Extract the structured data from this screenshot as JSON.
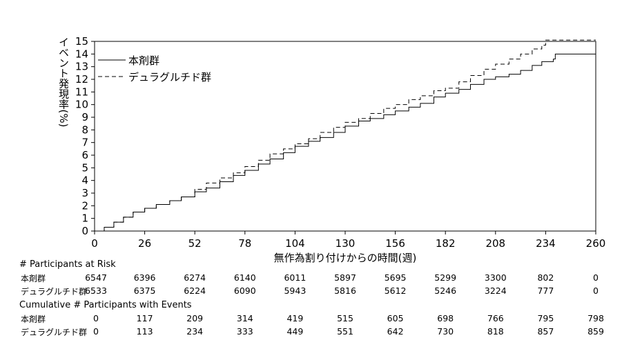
{
  "chart_data": {
    "type": "line",
    "xlabel": "無作為割り付けからの時間(週)",
    "ylabel": "イベント発現率(%)",
    "xlim": [
      0,
      260
    ],
    "ylim": [
      0,
      15
    ],
    "xticks": [
      0,
      26,
      52,
      78,
      104,
      130,
      156,
      182,
      208,
      234,
      260
    ],
    "yticks": [
      0,
      1,
      2,
      3,
      4,
      5,
      6,
      7,
      8,
      9,
      10,
      11,
      12,
      13,
      14,
      15
    ],
    "legend_position": "top-left",
    "grid": false,
    "series": [
      {
        "name": "本剤群",
        "line_style": "solid",
        "x": [
          0,
          5,
          10,
          15,
          20,
          26,
          32,
          39,
          45,
          52,
          58,
          65,
          72,
          78,
          85,
          91,
          98,
          104,
          111,
          117,
          124,
          130,
          137,
          143,
          150,
          156,
          163,
          169,
          176,
          182,
          189,
          195,
          202,
          208,
          215,
          221,
          227,
          232,
          234,
          238,
          239,
          260
        ],
        "y": [
          0,
          0.3,
          0.7,
          1.1,
          1.5,
          1.8,
          2.1,
          2.4,
          2.7,
          3.1,
          3.4,
          3.9,
          4.4,
          4.8,
          5.3,
          5.7,
          6.2,
          6.7,
          7.1,
          7.4,
          7.8,
          8.3,
          8.7,
          8.9,
          9.2,
          9.5,
          9.8,
          10.1,
          10.6,
          10.9,
          11.2,
          11.6,
          12.0,
          12.2,
          12.4,
          12.7,
          13.1,
          13.4,
          13.4,
          13.6,
          14.0,
          14.0
        ]
      },
      {
        "name": "デュラグルチド群",
        "line_style": "dashed",
        "x": [
          0,
          5,
          10,
          15,
          20,
          26,
          32,
          39,
          45,
          52,
          58,
          65,
          72,
          78,
          85,
          91,
          98,
          104,
          111,
          117,
          124,
          130,
          137,
          143,
          150,
          156,
          163,
          169,
          176,
          182,
          189,
          195,
          202,
          208,
          215,
          221,
          227,
          232,
          234,
          260
        ],
        "y": [
          0,
          0.3,
          0.7,
          1.1,
          1.5,
          1.8,
          2.1,
          2.4,
          2.7,
          3.3,
          3.8,
          4.2,
          4.6,
          5.1,
          5.6,
          6.1,
          6.5,
          6.9,
          7.3,
          7.8,
          8.2,
          8.6,
          8.9,
          9.3,
          9.7,
          10.0,
          10.4,
          10.7,
          11.1,
          11.3,
          11.8,
          12.3,
          12.8,
          13.2,
          13.6,
          14.0,
          14.4,
          14.7,
          15.1,
          15.1
        ]
      }
    ]
  },
  "tables": {
    "x_positions": [
      0,
      26,
      52,
      78,
      104,
      130,
      156,
      182,
      208,
      234,
      260
    ],
    "at_risk": {
      "title": "# Participants at Risk",
      "rows": [
        {
          "label": "本剤群",
          "values": [
            "6547",
            "6396",
            "6274",
            "6140",
            "6011",
            "5897",
            "5695",
            "5299",
            "3300",
            "802",
            "0"
          ]
        },
        {
          "label": "デュラグルチド群",
          "values": [
            "6533",
            "6375",
            "6224",
            "6090",
            "5943",
            "5816",
            "5612",
            "5246",
            "3224",
            "777",
            "0"
          ]
        }
      ]
    },
    "events": {
      "title": "Cumulative # Participants with Events",
      "rows": [
        {
          "label": "本剤群",
          "values": [
            "0",
            "117",
            "209",
            "314",
            "419",
            "515",
            "605",
            "698",
            "766",
            "795",
            "798"
          ]
        },
        {
          "label": "デュラグルチド群",
          "values": [
            "0",
            "113",
            "234",
            "333",
            "449",
            "551",
            "642",
            "730",
            "818",
            "857",
            "859"
          ]
        }
      ]
    }
  }
}
